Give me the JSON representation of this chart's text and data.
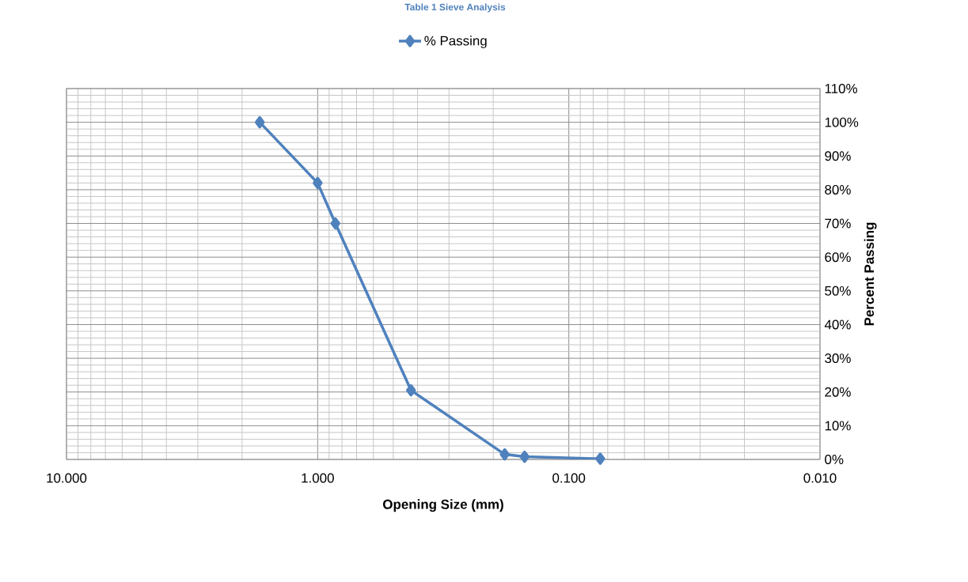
{
  "chart_data": {
    "type": "line",
    "title": "Table 1 Sieve Analysis",
    "xlabel": "Opening Size (mm)",
    "ylabel": "Percent Passing",
    "x": [
      1.7,
      1.0,
      0.85,
      0.425,
      0.18,
      0.15,
      0.075
    ],
    "series": [
      {
        "name": "% Passing",
        "color": "#4f81bd",
        "values": [
          100,
          82,
          70,
          20.5,
          1.5,
          0.8,
          0.2
        ]
      }
    ],
    "log": "x",
    "xlim": [
      10,
      0.01
    ],
    "xticks": [
      {
        "value": 10,
        "label": "10.000"
      },
      {
        "value": 1,
        "label": "1.000"
      },
      {
        "value": 0.1,
        "label": "0.100"
      },
      {
        "value": 0.01,
        "label": "0.010"
      }
    ],
    "ylim": [
      0,
      110
    ],
    "yticks": [
      {
        "value": 0,
        "label": "0%"
      },
      {
        "value": 10,
        "label": "10%"
      },
      {
        "value": 20,
        "label": "20%"
      },
      {
        "value": 30,
        "label": "30%"
      },
      {
        "value": 40,
        "label": "40%"
      },
      {
        "value": 50,
        "label": "50%"
      },
      {
        "value": 60,
        "label": "60%"
      },
      {
        "value": 70,
        "label": "70%"
      },
      {
        "value": 80,
        "label": "80%"
      },
      {
        "value": 90,
        "label": "90%"
      },
      {
        "value": 100,
        "label": "100%"
      },
      {
        "value": 110,
        "label": "110%"
      }
    ],
    "grid": true,
    "legend": "top",
    "marker": "diamond",
    "line_style": "solid"
  }
}
